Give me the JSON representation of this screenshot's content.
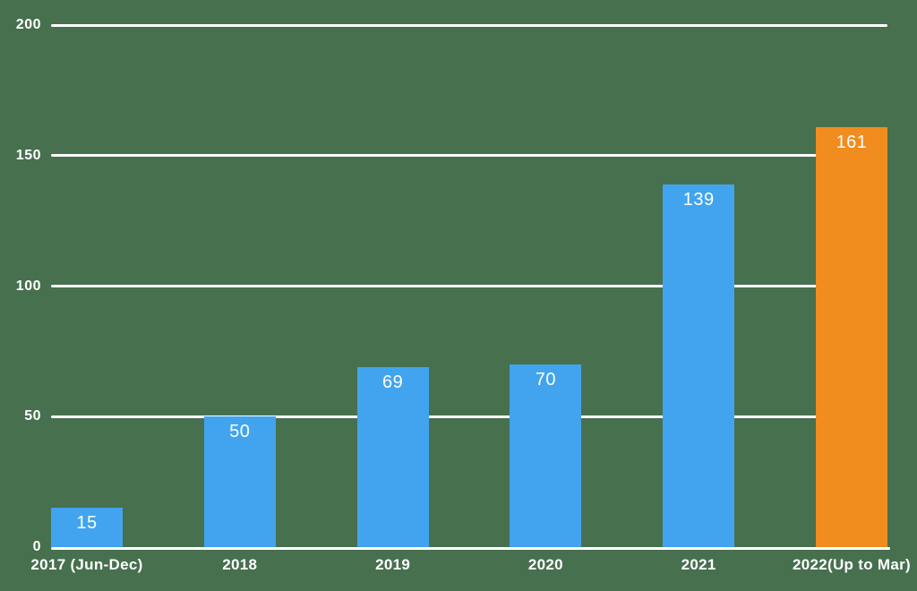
{
  "chart_data": {
    "type": "bar",
    "title": "",
    "xlabel": "",
    "ylabel": "",
    "categories": [
      "2017 (Jun-Dec)",
      "2018",
      "2019",
      "2020",
      "2021",
      "2022(Up to Mar)"
    ],
    "values": [
      15,
      50,
      69,
      70,
      139,
      161
    ],
    "value_labels": [
      "15",
      "50",
      "69",
      "70",
      "139",
      "161"
    ],
    "bar_colors": [
      "#42A4EE",
      "#42A4EE",
      "#42A4EE",
      "#42A4EE",
      "#42A4EE",
      "#F18C1E"
    ],
    "ylim": [
      0,
      200
    ],
    "yticks": [
      0,
      50,
      100,
      150,
      200
    ],
    "grid": true,
    "legend": false,
    "colors": {
      "background": "#47704E",
      "gridline": "#FFFFFF",
      "axis_line": "#FFFFFF",
      "axis_text": "#FFFFFF",
      "value_text": "#FFFFFF"
    }
  }
}
